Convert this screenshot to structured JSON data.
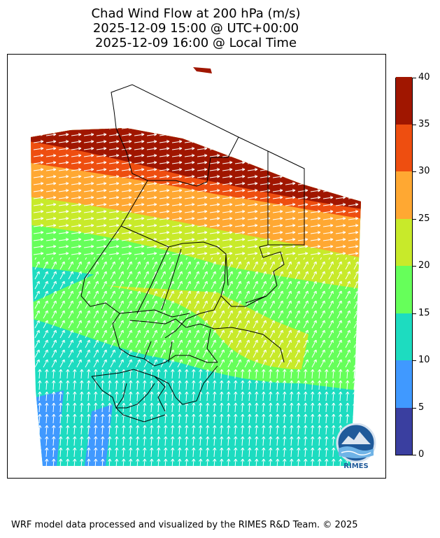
{
  "title": {
    "line1": "Chad Wind Flow at 200 hPa (m/s)",
    "line2": "2025-12-09 15:00 @ UTC+00:00",
    "line3": "2025-12-09 16:00 @ Local Time"
  },
  "colorbar": {
    "ticks": [
      "0",
      "5",
      "10",
      "15",
      "20",
      "25",
      "30",
      "35",
      "40"
    ],
    "colors": [
      "#3a3fa0",
      "#4099ff",
      "#1ddcc0",
      "#66ff5a",
      "#c8ea2a",
      "#ffa832",
      "#ee4e10",
      "#a01600"
    ]
  },
  "logo": {
    "text": "RIMES"
  },
  "footer": "WRF model data processed and visualized by the RIMES R&D Team. © 2025"
}
